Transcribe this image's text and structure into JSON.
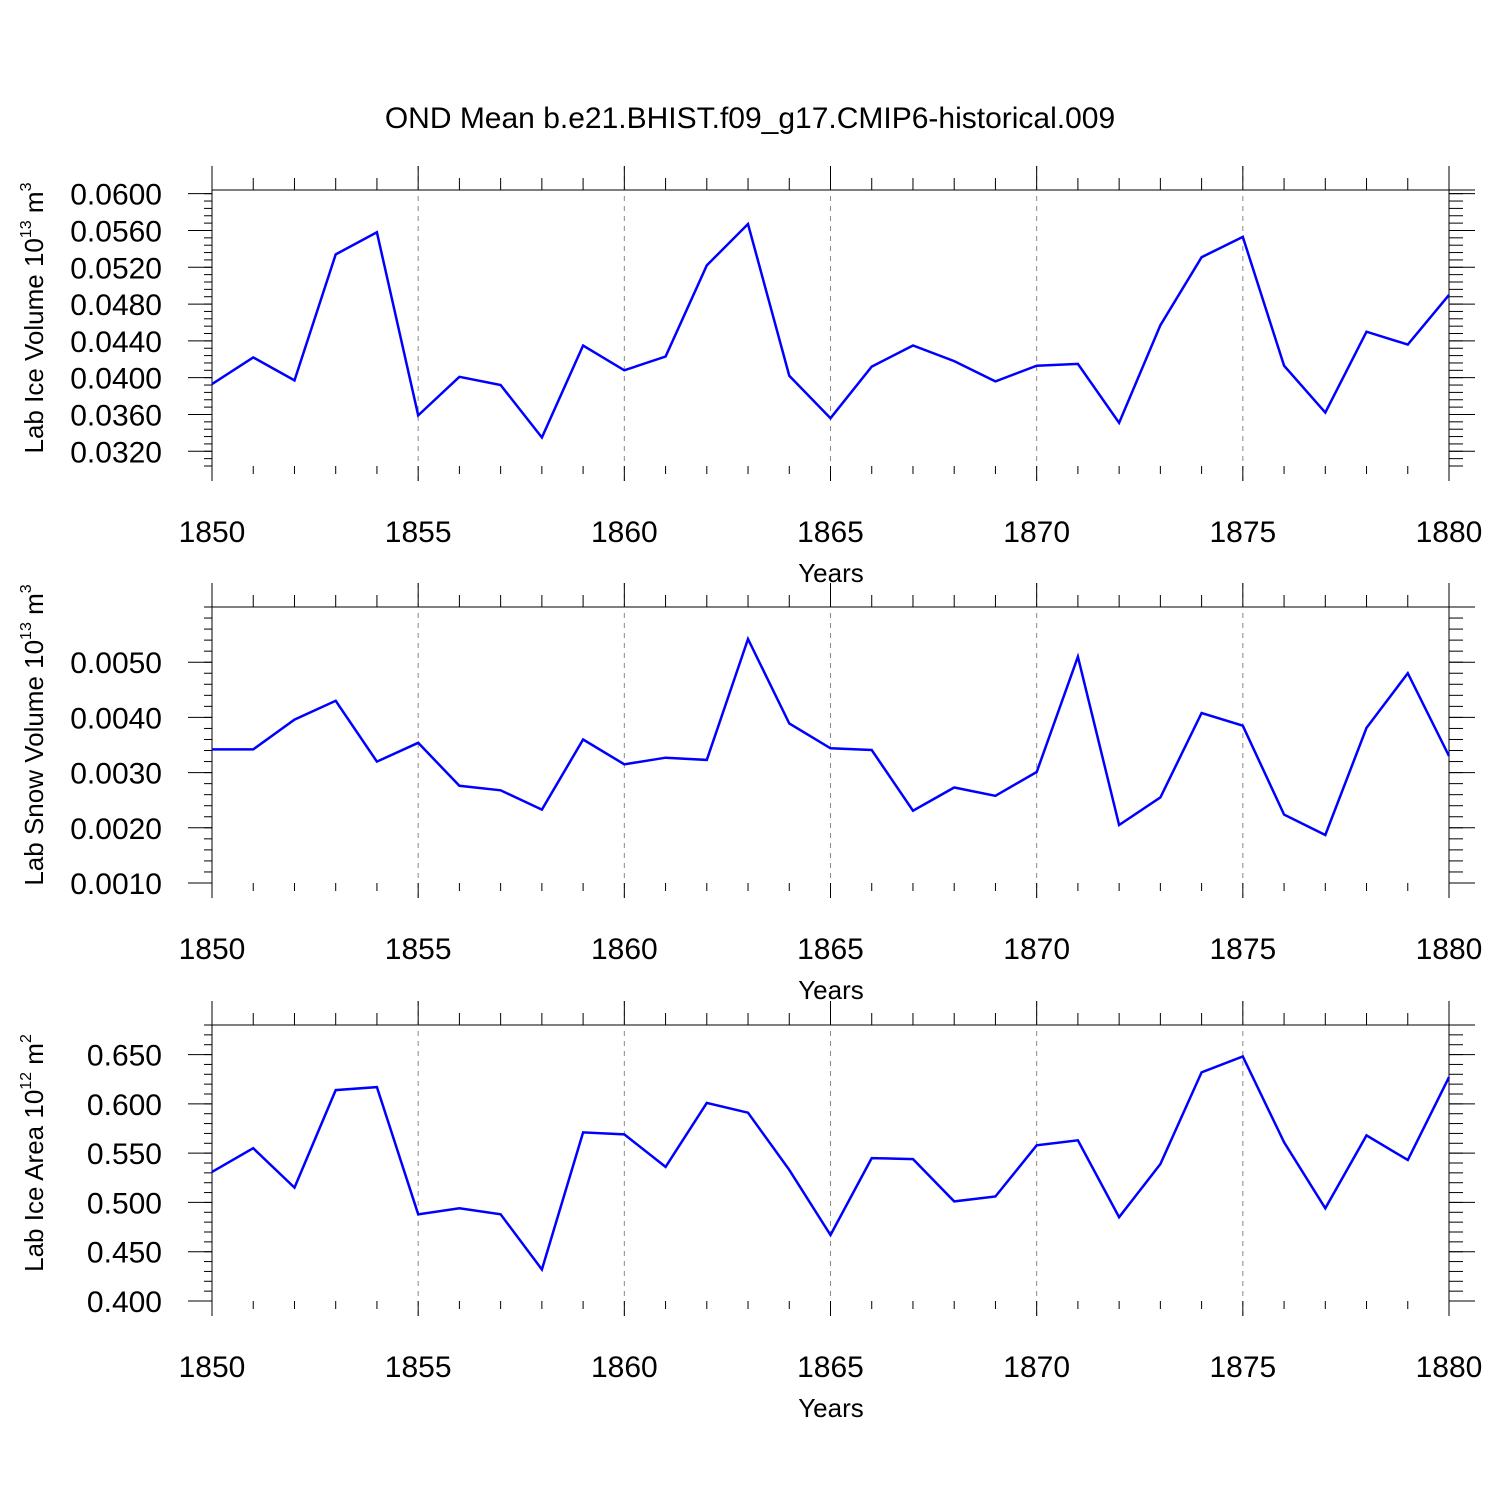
{
  "title": "OND Mean b.e21.BHIST.f09_g17.CMIP6-historical.009",
  "series_color": "#0000ff",
  "chart_data": [
    {
      "type": "line",
      "ylabel_parts": [
        "Lab Ice Volume 10",
        "13",
        " m",
        "3"
      ],
      "xlabel": "Years",
      "x": [
        1850,
        1851,
        1852,
        1853,
        1854,
        1855,
        1856,
        1857,
        1858,
        1859,
        1860,
        1861,
        1862,
        1863,
        1864,
        1865,
        1866,
        1867,
        1868,
        1869,
        1870,
        1871,
        1872,
        1873,
        1874,
        1875,
        1876,
        1877,
        1878,
        1879,
        1880
      ],
      "y": [
        0.0393,
        0.0422,
        0.0397,
        0.0534,
        0.0558,
        0.0359,
        0.0401,
        0.0392,
        0.0335,
        0.0435,
        0.0408,
        0.0423,
        0.0522,
        0.0567,
        0.0402,
        0.0356,
        0.0412,
        0.0435,
        0.0418,
        0.0396,
        0.0413,
        0.0415,
        0.0351,
        0.0457,
        0.0531,
        0.0553,
        0.0413,
        0.0362,
        0.045,
        0.0436,
        0.049
      ],
      "xlim": [
        1850,
        1880
      ],
      "ylim": [
        0.0304,
        0.0604
      ],
      "xticks": [
        1850,
        1855,
        1860,
        1865,
        1870,
        1875,
        1880
      ],
      "xtick_labels": [
        "1850",
        "1855",
        "1860",
        "1865",
        "1870",
        "1875",
        "1880"
      ],
      "yticks": [
        0.032,
        0.036,
        0.04,
        0.044,
        0.048,
        0.052,
        0.056,
        0.06
      ],
      "ytick_labels": [
        "0.0320",
        "0.0360",
        "0.0400",
        "0.0440",
        "0.0480",
        "0.0520",
        "0.0560",
        "0.0600"
      ],
      "yminor_step": 0.0008,
      "grid": "vertical dashed"
    },
    {
      "type": "line",
      "ylabel_parts": [
        "Lab Snow Volume 10",
        "13",
        " m",
        "3"
      ],
      "xlabel": "Years",
      "x": [
        1850,
        1851,
        1852,
        1853,
        1854,
        1855,
        1856,
        1857,
        1858,
        1859,
        1860,
        1861,
        1862,
        1863,
        1864,
        1865,
        1866,
        1867,
        1868,
        1869,
        1870,
        1871,
        1872,
        1873,
        1874,
        1875,
        1876,
        1877,
        1878,
        1879,
        1880
      ],
      "y": [
        0.00342,
        0.00342,
        0.00396,
        0.0043,
        0.0032,
        0.00354,
        0.00276,
        0.00268,
        0.00233,
        0.0036,
        0.00315,
        0.00327,
        0.00323,
        0.00542,
        0.00389,
        0.00344,
        0.00341,
        0.00231,
        0.00273,
        0.00258,
        0.00301,
        0.0051,
        0.00205,
        0.00255,
        0.00408,
        0.00385,
        0.00224,
        0.00187,
        0.00381,
        0.0048,
        0.0033
      ],
      "xlim": [
        1850,
        1880
      ],
      "ylim": [
        0.001,
        0.006
      ],
      "xticks": [
        1850,
        1855,
        1860,
        1865,
        1870,
        1875,
        1880
      ],
      "xtick_labels": [
        "1850",
        "1855",
        "1860",
        "1865",
        "1870",
        "1875",
        "1880"
      ],
      "yticks": [
        0.001,
        0.002,
        0.003,
        0.004,
        0.005
      ],
      "ytick_labels": [
        "0.0010",
        "0.0020",
        "0.0030",
        "0.0040",
        "0.0050"
      ],
      "yminor_step": 0.0002,
      "grid": "vertical dashed"
    },
    {
      "type": "line",
      "ylabel_parts": [
        "Lab Ice Area 10",
        "12",
        " m",
        "2"
      ],
      "xlabel": "Years",
      "x": [
        1850,
        1851,
        1852,
        1853,
        1854,
        1855,
        1856,
        1857,
        1858,
        1859,
        1860,
        1861,
        1862,
        1863,
        1864,
        1865,
        1866,
        1867,
        1868,
        1869,
        1870,
        1871,
        1872,
        1873,
        1874,
        1875,
        1876,
        1877,
        1878,
        1879,
        1880
      ],
      "y": [
        0.531,
        0.555,
        0.515,
        0.614,
        0.617,
        0.488,
        0.494,
        0.488,
        0.432,
        0.571,
        0.569,
        0.536,
        0.601,
        0.591,
        0.533,
        0.467,
        0.545,
        0.544,
        0.501,
        0.506,
        0.558,
        0.563,
        0.485,
        0.539,
        0.632,
        0.648,
        0.561,
        0.494,
        0.568,
        0.543,
        0.627
      ],
      "xlim": [
        1850,
        1880
      ],
      "ylim": [
        0.4,
        0.68
      ],
      "xticks": [
        1850,
        1855,
        1860,
        1865,
        1870,
        1875,
        1880
      ],
      "xtick_labels": [
        "1850",
        "1855",
        "1860",
        "1865",
        "1870",
        "1875",
        "1880"
      ],
      "yticks": [
        0.4,
        0.45,
        0.5,
        0.55,
        0.6,
        0.65
      ],
      "ytick_labels": [
        "0.400",
        "0.450",
        "0.500",
        "0.550",
        "0.600",
        "0.650"
      ],
      "yminor_step": 0.01,
      "grid": "vertical dashed"
    }
  ]
}
